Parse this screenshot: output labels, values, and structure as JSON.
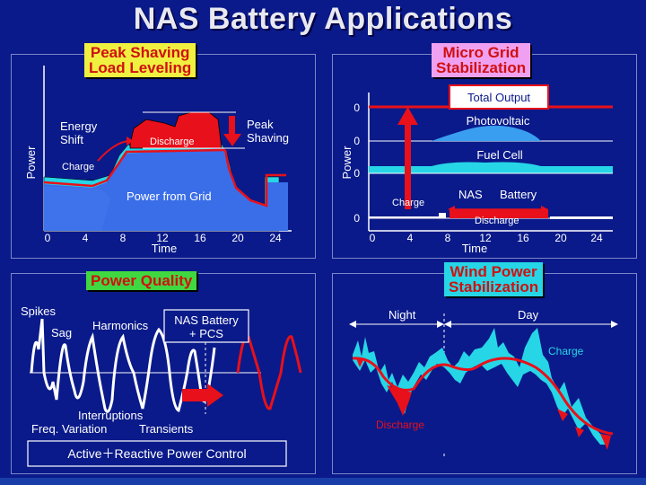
{
  "title": "NAS Battery Applications",
  "colors": {
    "background": "#0a1a8a",
    "red": "#e8101a",
    "blue": "#3a6ee8",
    "cyan": "#26d6e6",
    "yellow": "#f0f040",
    "pink": "#f0a0f0",
    "green": "#40d840"
  },
  "panel1": {
    "tag": [
      "Peak Shaving",
      "Load Leveling"
    ],
    "ylabel": "Power",
    "xlabel": "Time",
    "xticks": [
      "0",
      "4",
      "8",
      "12",
      "16",
      "20",
      "24"
    ],
    "labels": {
      "energy_shift": [
        "Energy",
        "Shift"
      ],
      "charge": "Charge",
      "discharge": "Discharge",
      "peak_shaving": [
        "Peak",
        "Shaving"
      ],
      "grid": "Power from Grid"
    }
  },
  "panel2": {
    "tag": [
      "Micro Grid",
      "Stabilization"
    ],
    "ylabel": "Power",
    "xlabel": "Time",
    "xticks": [
      "0",
      "4",
      "8",
      "12",
      "16",
      "20",
      "24"
    ],
    "zero": "0",
    "labels": {
      "total": "Total Output",
      "pv": "Photovoltaic",
      "fc": "Fuel Cell",
      "nas": "NAS",
      "battery": "Battery",
      "charge": "Charge",
      "discharge": "Discharge"
    }
  },
  "panel3": {
    "tag": "Power Quality",
    "labels": {
      "spikes": "Spikes",
      "sag": "Sag",
      "harmonics": "Harmonics",
      "nas_pcs": [
        "NAS Battery",
        "+ PCS"
      ],
      "interruptions": "Interruptions",
      "freq": "Freq. Variation",
      "transients": "Transients"
    },
    "footer": "Active＋Reactive Power Control"
  },
  "panel4": {
    "tag": [
      "Wind Power",
      "Stabilization"
    ],
    "labels": {
      "night": "Night",
      "day": "Day",
      "charge": "Charge",
      "discharge": "Discharge"
    }
  }
}
